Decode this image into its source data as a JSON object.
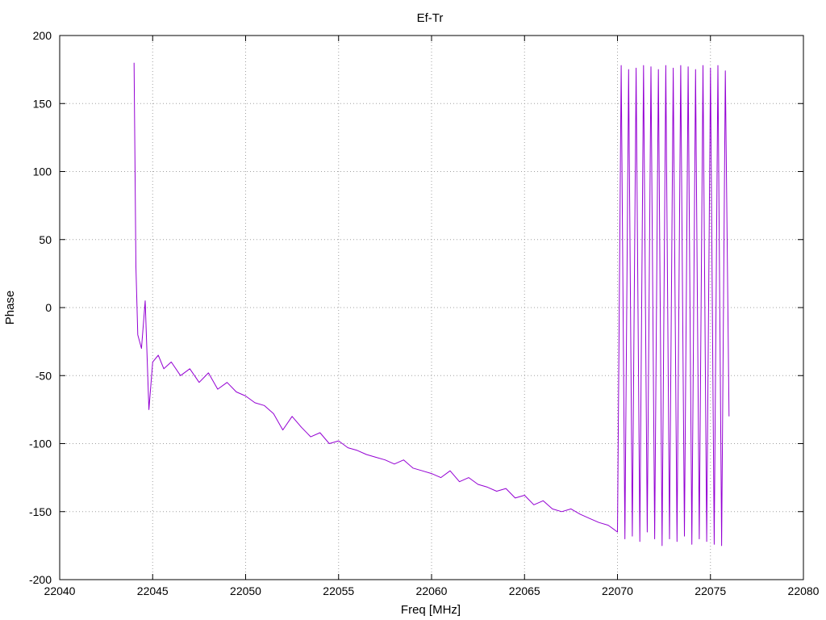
{
  "chart_data": {
    "type": "line",
    "title": "Ef-Tr",
    "xlabel": "Freq [MHz]",
    "ylabel": "Phase",
    "xlim": [
      22040,
      22080
    ],
    "ylim": [
      -200,
      200
    ],
    "x_ticks": [
      22040,
      22045,
      22050,
      22055,
      22060,
      22065,
      22070,
      22075,
      22080
    ],
    "y_ticks": [
      -200,
      -150,
      -100,
      -50,
      0,
      50,
      100,
      150,
      200
    ],
    "grid": true,
    "legend": "none",
    "series": [
      {
        "color": "#9400d3",
        "x": [
          22044.0,
          22044.1,
          22044.2,
          22044.4,
          22044.6,
          22044.8,
          22045.0,
          22045.3,
          22045.6,
          22046.0,
          22046.5,
          22047.0,
          22047.5,
          22048.0,
          22048.5,
          22049.0,
          22049.5,
          22050.0,
          22050.5,
          22051.0,
          22051.5,
          22052.0,
          22052.5,
          22053.0,
          22053.5,
          22054.0,
          22054.5,
          22055.0,
          22055.5,
          22056.0,
          22056.5,
          22057.0,
          22057.5,
          22058.0,
          22058.5,
          22059.0,
          22059.5,
          22060.0,
          22060.5,
          22061.0,
          22061.5,
          22062.0,
          22062.5,
          22063.0,
          22063.5,
          22064.0,
          22064.5,
          22065.0,
          22065.5,
          22066.0,
          22066.5,
          22067.0,
          22067.5,
          22068.0,
          22068.5,
          22069.0,
          22069.5,
          22070.0,
          22070.2,
          22070.4,
          22070.6,
          22070.8,
          22071.0,
          22071.2,
          22071.4,
          22071.6,
          22071.8,
          22072.0,
          22072.2,
          22072.4,
          22072.6,
          22072.8,
          22073.0,
          22073.2,
          22073.4,
          22073.6,
          22073.8,
          22074.0,
          22074.2,
          22074.4,
          22074.6,
          22074.8,
          22075.0,
          22075.2,
          22075.4,
          22075.6,
          22075.8,
          22076.0
        ],
        "y": [
          180,
          30,
          -20,
          -30,
          5,
          -75,
          -40,
          -35,
          -45,
          -40,
          -50,
          -45,
          -55,
          -48,
          -60,
          -55,
          -62,
          -65,
          -70,
          -72,
          -78,
          -90,
          -80,
          -88,
          -95,
          -92,
          -100,
          -98,
          -103,
          -105,
          -108,
          -110,
          -112,
          -115,
          -112,
          -118,
          -120,
          -122,
          -125,
          -120,
          -128,
          -125,
          -130,
          -132,
          -135,
          -133,
          -140,
          -138,
          -145,
          -142,
          -148,
          -150,
          -148,
          -152,
          -155,
          -158,
          -160,
          -165,
          178,
          -170,
          175,
          -168,
          176,
          -172,
          178,
          -165,
          177,
          -170,
          175,
          -175,
          178,
          -170,
          176,
          -172,
          178,
          -168,
          177,
          -174,
          175,
          -170,
          178,
          -172,
          176,
          -174,
          178,
          -175,
          174,
          -80
        ]
      }
    ]
  }
}
